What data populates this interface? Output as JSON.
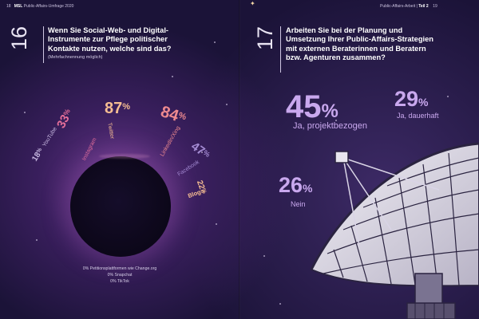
{
  "header": {
    "left_page": "18",
    "left_brand": "MSL",
    "left_title": "Public-Affairs-Umfrage 2020",
    "right_title": "Public-Affairs-Arbeit",
    "right_sep": "|",
    "right_part": "Teil 2",
    "right_page": "19"
  },
  "q16": {
    "number": "16",
    "text_lines": [
      "Wenn Sie Social-Web- und Digital-",
      "Instrumente zur Pflege politischer",
      "Kontakte nutzen, welche sind das?"
    ],
    "note": "(Mehrfachnennung möglich)",
    "items": [
      {
        "name": "YouTube",
        "value": "18",
        "unit": "%"
      },
      {
        "name": "Instagram",
        "value": "33",
        "unit": "%"
      },
      {
        "name": "Twitter",
        "value": "87",
        "unit": "%"
      },
      {
        "name": "LinkedIn/Xing",
        "value": "84",
        "unit": "%"
      },
      {
        "name": "Facebook",
        "value": "47",
        "unit": "%"
      },
      {
        "name": "Blogs",
        "value": "22",
        "unit": "%"
      }
    ],
    "zero_items": [
      "0% Petitionsplattformen wie Change.org",
      "0% Snapchat",
      "0% TikTok"
    ],
    "colors": {
      "youtube": "#c7b8e0",
      "instagram": "#e66f9a",
      "twitter": "#f5bd92",
      "linkedin": "#ee8a8f",
      "facebook": "#a48bd3",
      "blogs": "#f5bd92"
    }
  },
  "q17": {
    "number": "17",
    "text_lines": [
      "Arbeiten Sie bei der Planung und",
      "Umsetzung Ihrer Public-Affairs-Strategien",
      "mit externen Beraterinnen und Beratern",
      "bzw. Agenturen zusammen?"
    ],
    "stats": [
      {
        "value": "45",
        "unit": "%",
        "label": "Ja, projektbezogen"
      },
      {
        "value": "29",
        "unit": "%",
        "label": "Ja, dauerhaft"
      },
      {
        "value": "26",
        "unit": "%",
        "label": "Nein"
      }
    ],
    "accent": "#c9a8ee"
  }
}
